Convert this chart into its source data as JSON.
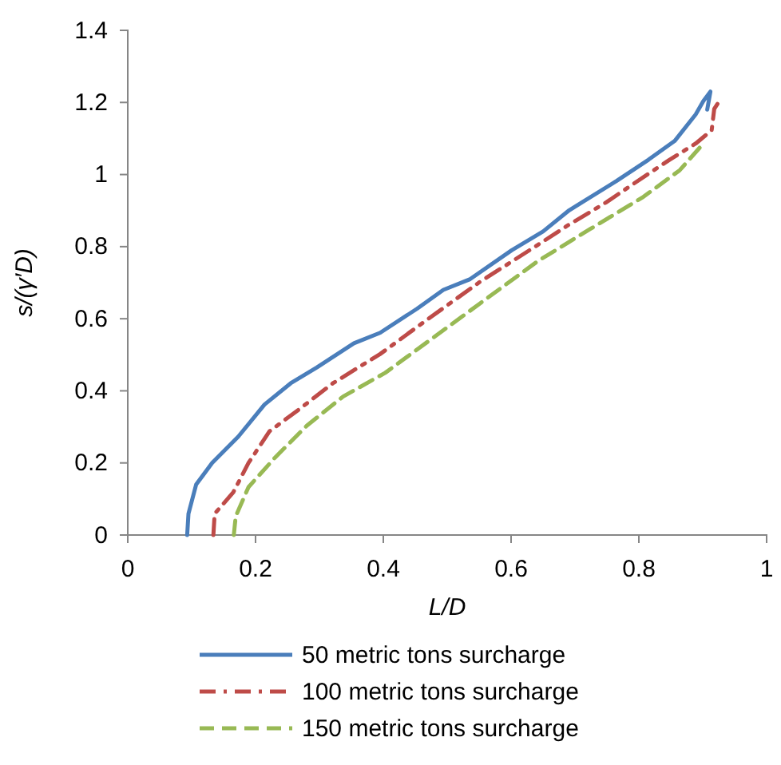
{
  "chart_data": {
    "type": "line",
    "xlabel": "L/D",
    "ylabel": "s/(γ′D)",
    "xlim": [
      0,
      1
    ],
    "ylim": [
      0,
      1.4
    ],
    "xticks": [
      0,
      0.2,
      0.4,
      0.6,
      0.8,
      1
    ],
    "yticks": [
      0,
      0.2,
      0.4,
      0.6,
      0.8,
      1,
      1.2,
      1.4
    ],
    "grid": false,
    "legend": "bottom",
    "marker": "none",
    "series": [
      {
        "name": "50 metric tons surcharge",
        "color": "#4a7ebb",
        "line_style": "solid",
        "x": [
          0.093,
          0.095,
          0.107,
          0.132,
          0.173,
          0.214,
          0.255,
          0.296,
          0.354,
          0.395,
          0.453,
          0.494,
          0.535,
          0.601,
          0.65,
          0.691,
          0.765,
          0.815,
          0.856,
          0.889,
          0.901,
          0.912,
          0.907
        ],
        "values": [
          0,
          0.059,
          0.14,
          0.2,
          0.273,
          0.362,
          0.421,
          0.465,
          0.532,
          0.561,
          0.628,
          0.68,
          0.709,
          0.79,
          0.842,
          0.901,
          0.982,
          1.041,
          1.093,
          1.167,
          1.204,
          1.23,
          1.18
        ]
      },
      {
        "name": "100 metric tons surcharge",
        "color": "#be4b48",
        "line_style": "dashdot",
        "x": [
          0.134,
          0.136,
          0.165,
          0.189,
          0.222,
          0.267,
          0.321,
          0.395,
          0.469,
          0.551,
          0.642,
          0.687,
          0.749,
          0.798,
          0.848,
          0.889,
          0.914,
          0.918,
          0.926
        ],
        "values": [
          0,
          0.059,
          0.118,
          0.2,
          0.288,
          0.347,
          0.421,
          0.502,
          0.598,
          0.702,
          0.805,
          0.857,
          0.923,
          0.982,
          1.041,
          1.086,
          1.123,
          1.182,
          1.204
        ]
      },
      {
        "name": "150 metric tons surcharge",
        "color": "#98b954",
        "line_style": "dashed",
        "x": [
          0.166,
          0.169,
          0.189,
          0.23,
          0.28,
          0.337,
          0.403,
          0.477,
          0.551,
          0.642,
          0.724,
          0.807,
          0.864,
          0.901
        ],
        "values": [
          0,
          0.052,
          0.133,
          0.214,
          0.303,
          0.384,
          0.45,
          0.546,
          0.642,
          0.76,
          0.849,
          0.938,
          1.012,
          1.086
        ]
      }
    ]
  }
}
